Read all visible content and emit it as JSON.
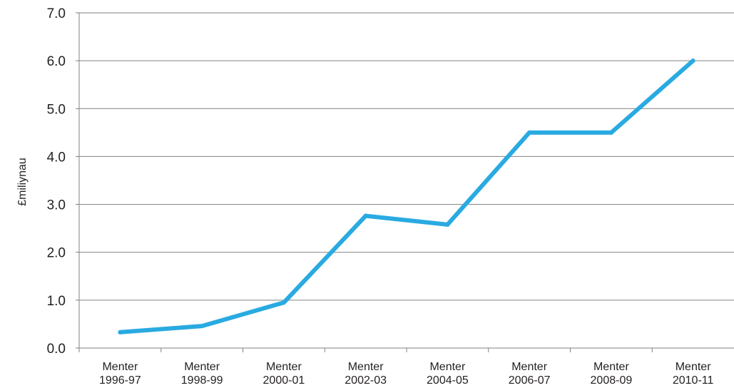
{
  "chart_data": {
    "type": "line",
    "title": "",
    "xlabel": "",
    "ylabel": "£miliynau",
    "categories": [
      [
        "Menter",
        "1996-97"
      ],
      [
        "Menter",
        "1998-99"
      ],
      [
        "Menter",
        "2000-01"
      ],
      [
        "Menter",
        "2002-03"
      ],
      [
        "Menter",
        "2004-05"
      ],
      [
        "Menter",
        "2006-07"
      ],
      [
        "Menter",
        "2008-09"
      ],
      [
        "Menter",
        "2010-11"
      ]
    ],
    "values": [
      0.33,
      0.46,
      0.95,
      2.76,
      2.58,
      4.5,
      4.5,
      6.0
    ],
    "ylim": [
      0,
      7
    ],
    "yticks": [
      "0.0",
      "1.0",
      "2.0",
      "3.0",
      "4.0",
      "5.0",
      "6.0",
      "7.0"
    ],
    "grid": true,
    "legend": "none",
    "line_color": "#29aae1",
    "grid_color": "#808080"
  }
}
